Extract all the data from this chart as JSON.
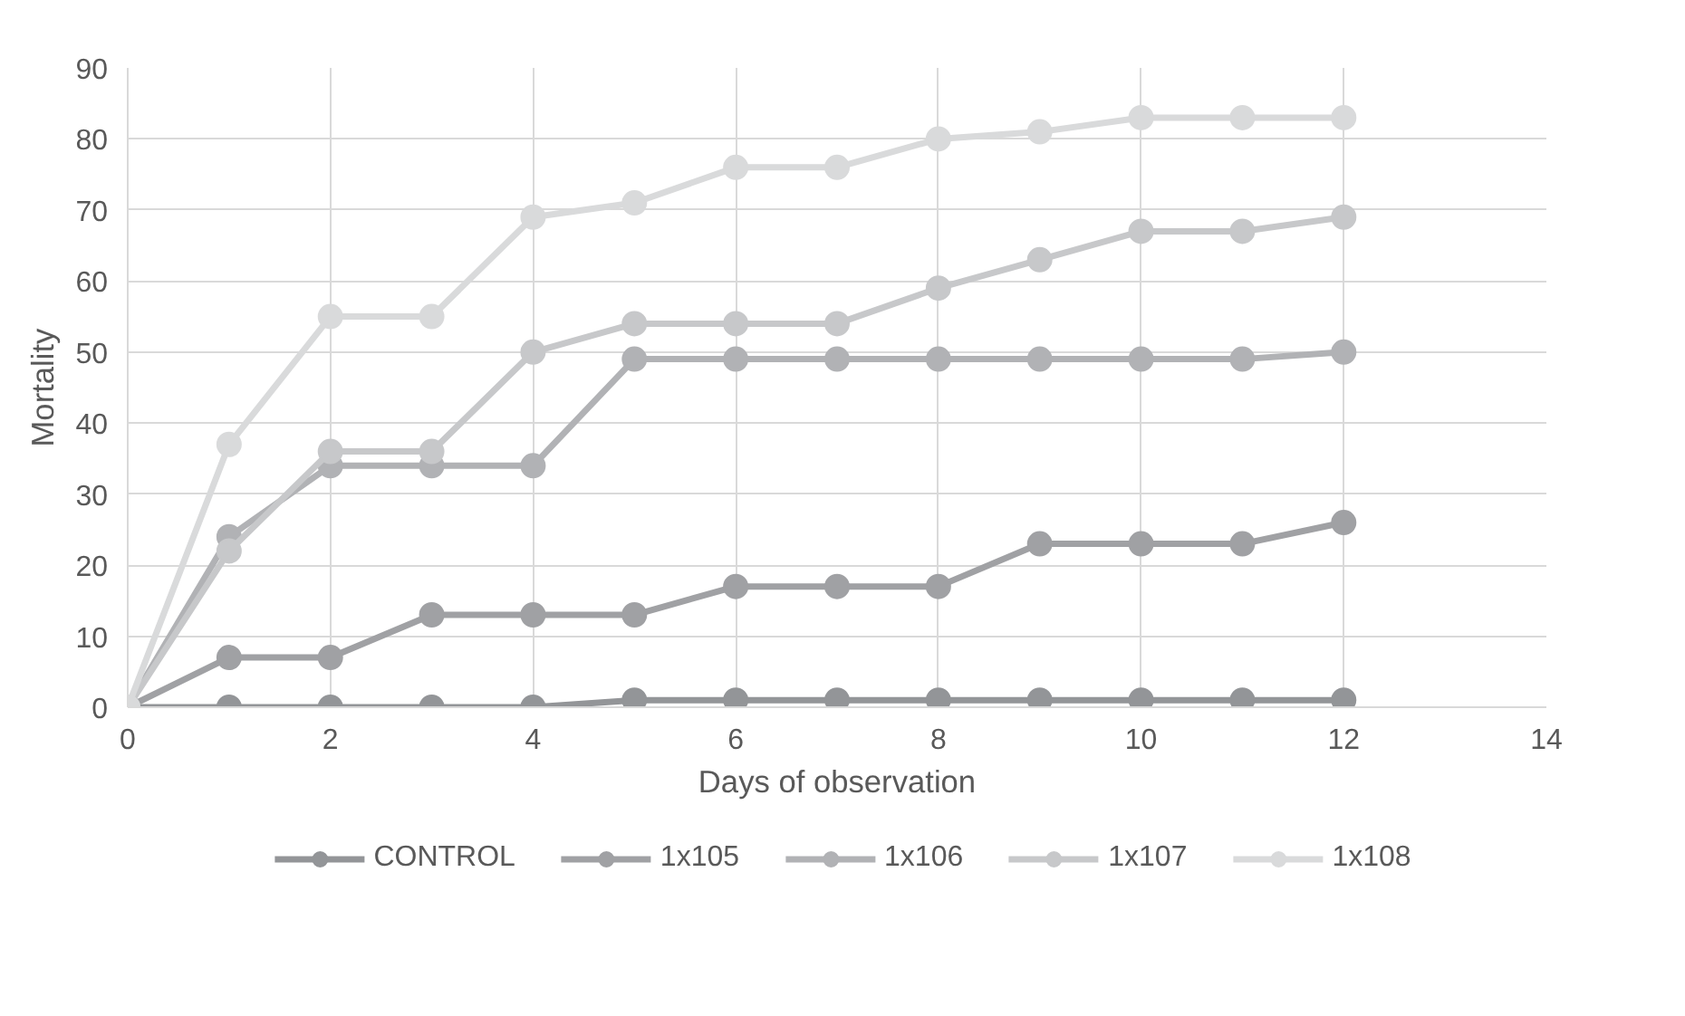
{
  "chart_data": {
    "type": "line",
    "xlabel": "Days of observation",
    "ylabel": "Mortality",
    "x": [
      0,
      1,
      2,
      3,
      4,
      5,
      6,
      7,
      8,
      9,
      10,
      11,
      12
    ],
    "xlim": [
      0,
      14
    ],
    "xticks": [
      0,
      2,
      4,
      6,
      8,
      10,
      12,
      14
    ],
    "ylim": [
      0,
      90
    ],
    "yticks": [
      0,
      10,
      20,
      30,
      40,
      50,
      60,
      70,
      80,
      90
    ],
    "grid": true,
    "legend": "bottom",
    "marker": "circle",
    "line_style": "solid",
    "series": [
      {
        "name": "CONTROL",
        "color": "#939598",
        "values": [
          0,
          0,
          0,
          0,
          0,
          1,
          1,
          1,
          1,
          1,
          1,
          1,
          1
        ]
      },
      {
        "name": "1x105",
        "color": "#a0a1a4",
        "values": [
          0,
          7,
          7,
          13,
          13,
          13,
          17,
          17,
          17,
          23,
          23,
          23,
          26
        ]
      },
      {
        "name": "1x106",
        "color": "#b1b2b5",
        "values": [
          0,
          24,
          34,
          34,
          34,
          49,
          49,
          49,
          49,
          49,
          49,
          49,
          50
        ]
      },
      {
        "name": "1x107",
        "color": "#c7c8ca",
        "values": [
          0,
          22,
          36,
          36,
          50,
          54,
          54,
          54,
          59,
          63,
          67,
          67,
          69
        ]
      },
      {
        "name": "1x108",
        "color": "#d9dadb",
        "values": [
          0,
          37,
          55,
          55,
          69,
          71,
          76,
          76,
          80,
          81,
          83,
          83,
          83
        ]
      }
    ]
  }
}
